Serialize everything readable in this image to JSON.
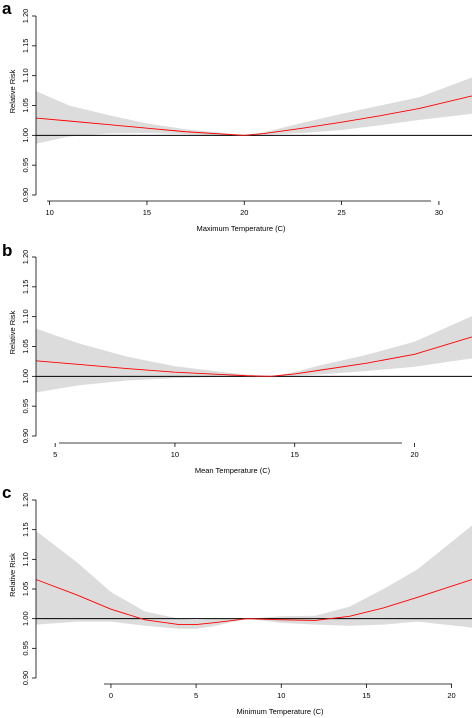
{
  "chart_data": [
    {
      "panel": "a",
      "type": "line",
      "xlabel": "Maximum Temperature (C)",
      "ylabel": "Relative Risk",
      "xlim": [
        9.3,
        31.7
      ],
      "ylim": [
        0.9,
        1.2
      ],
      "xticks": [
        10,
        15,
        20,
        25,
        30
      ],
      "yticks": [
        0.9,
        0.95,
        1.0,
        1.05,
        1.1,
        1.15,
        1.2
      ],
      "ytick_labels": [
        "0.90",
        "0.95",
        "1.00",
        "1.05",
        "1.10",
        "1.15",
        "1.20"
      ],
      "reference_line": 1.0,
      "line_color": "#ff0000",
      "band_color": "#dcdcdc",
      "series": [
        {
          "x": [
            9.3,
            11,
            13,
            15,
            17,
            19,
            20,
            21,
            23,
            25,
            27,
            29,
            31.7
          ],
          "y": [
            1.029,
            1.024,
            1.018,
            1.012,
            1.006,
            1.002,
            1.0,
            1.003,
            1.012,
            1.022,
            1.033,
            1.045,
            1.066
          ],
          "lower": [
            0.986,
            0.998,
            1.003,
            1.004,
            1.002,
            1.0,
            1.0,
            1.001,
            1.004,
            1.009,
            1.017,
            1.026,
            1.036
          ],
          "upper": [
            1.074,
            1.05,
            1.034,
            1.02,
            1.01,
            1.004,
            1.0,
            1.005,
            1.021,
            1.036,
            1.05,
            1.064,
            1.097
          ]
        }
      ]
    },
    {
      "panel": "b",
      "type": "line",
      "xlabel": "Mean Temperature (C)",
      "ylabel": "Relative Risk",
      "xlim": [
        4.2,
        22.4
      ],
      "ylim": [
        0.9,
        1.2
      ],
      "xticks": [
        5,
        10,
        15,
        20
      ],
      "yticks": [
        0.9,
        0.95,
        1.0,
        1.05,
        1.1,
        1.15,
        1.2
      ],
      "ytick_labels": [
        "0.90",
        "0.95",
        "1.00",
        "1.05",
        "1.10",
        "1.15",
        "1.20"
      ],
      "reference_line": 1.0,
      "line_color": "#ff0000",
      "band_color": "#dcdcdc",
      "series": [
        {
          "x": [
            4.2,
            6,
            8,
            10,
            12,
            13,
            14,
            15,
            16,
            18,
            20,
            22.4
          ],
          "y": [
            1.026,
            1.02,
            1.013,
            1.007,
            1.003,
            1.001,
            1.0,
            1.004,
            1.01,
            1.022,
            1.037,
            1.066
          ],
          "lower": [
            0.973,
            0.985,
            0.993,
            0.997,
            0.999,
            1.0,
            1.0,
            1.001,
            1.003,
            1.009,
            1.016,
            1.03
          ],
          "upper": [
            1.08,
            1.055,
            1.033,
            1.017,
            1.007,
            1.003,
            1.0,
            1.007,
            1.018,
            1.036,
            1.058,
            1.101
          ]
        }
      ]
    },
    {
      "panel": "c",
      "type": "line",
      "xlabel": "Minimum Temperature (C)",
      "ylabel": "Relative Risk",
      "xlim": [
        -4.4,
        21.2
      ],
      "ylim": [
        0.9,
        1.2
      ],
      "xticks": [
        0,
        5,
        10,
        15,
        20
      ],
      "yticks": [
        0.9,
        0.95,
        1.0,
        1.05,
        1.1,
        1.15,
        1.2
      ],
      "ytick_labels": [
        "0.90",
        "0.95",
        "1.00",
        "1.05",
        "1.10",
        "1.15",
        "1.20"
      ],
      "reference_line": 1.0,
      "line_color": "#ff0000",
      "band_color": "#dcdcdc",
      "series": [
        {
          "x": [
            -4.4,
            -2,
            0,
            2,
            4,
            5,
            6,
            8,
            10,
            12,
            14,
            16,
            18,
            21.2
          ],
          "y": [
            1.066,
            1.04,
            1.016,
            0.998,
            0.99,
            0.99,
            0.993,
            1.0,
            0.998,
            0.997,
            1.004,
            1.018,
            1.036,
            1.066
          ],
          "lower": [
            0.99,
            0.995,
            0.995,
            0.988,
            0.983,
            0.983,
            0.987,
            1.0,
            0.993,
            0.99,
            0.988,
            0.99,
            0.995,
            0.985
          ],
          "upper": [
            1.148,
            1.095,
            1.045,
            1.012,
            1.0,
            0.998,
            1.0,
            1.0,
            1.004,
            1.005,
            1.02,
            1.05,
            1.083,
            1.157
          ]
        }
      ]
    }
  ]
}
